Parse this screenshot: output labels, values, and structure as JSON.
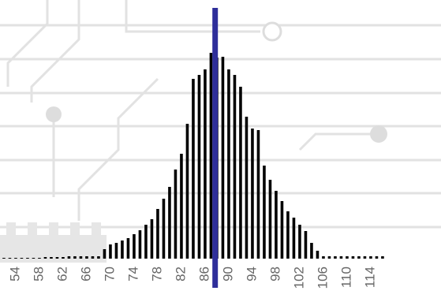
{
  "chart_data": {
    "type": "bar",
    "x": [
      52,
      53,
      54,
      55,
      56,
      57,
      58,
      59,
      60,
      61,
      62,
      63,
      64,
      65,
      66,
      67,
      68,
      69,
      70,
      71,
      72,
      73,
      74,
      75,
      76,
      77,
      78,
      79,
      80,
      81,
      82,
      83,
      84,
      85,
      86,
      87,
      88,
      89,
      90,
      91,
      92,
      93,
      94,
      95,
      96,
      97,
      98,
      99,
      100,
      101,
      102,
      103,
      104,
      105,
      106,
      107,
      108,
      109,
      110,
      111,
      112,
      113,
      114,
      115,
      116
    ],
    "values": [
      1,
      1,
      1,
      1,
      1,
      1,
      1,
      2,
      2,
      2,
      2,
      3,
      3,
      3,
      3,
      3,
      3,
      12,
      18,
      20,
      23,
      26,
      31,
      36,
      43,
      50,
      63,
      76,
      91,
      113,
      133,
      171,
      228,
      233,
      240,
      261,
      255,
      256,
      240,
      233,
      218,
      180,
      165,
      163,
      118,
      100,
      86,
      73,
      60,
      52,
      43,
      35,
      20,
      10,
      3,
      3,
      3,
      3,
      3,
      3,
      3,
      3,
      3,
      3,
      3
    ],
    "color": "#000000",
    "xlim": [
      51.5,
      117.5
    ],
    "xticks": [
      54,
      58,
      62,
      66,
      70,
      74,
      78,
      82,
      86,
      90,
      94,
      98,
      102,
      106,
      110,
      114
    ],
    "ylim": [
      0,
      300
    ],
    "mean_line": 87.7,
    "mean_line_color": "#2e2e9a"
  }
}
